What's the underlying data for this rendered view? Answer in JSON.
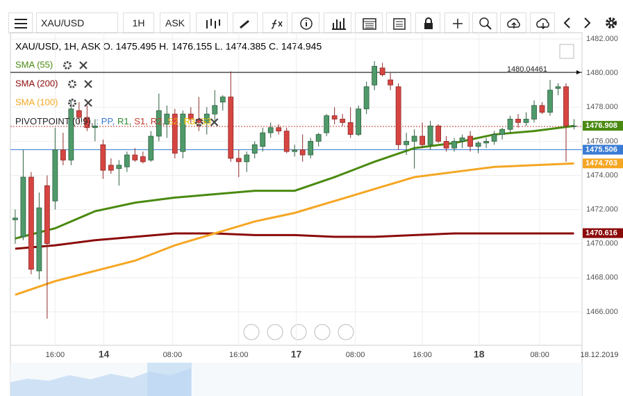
{
  "toolbar": {
    "symbol": "XAU/USD",
    "interval": "1H",
    "price_type": "ASK"
  },
  "chart_data": {
    "type": "candlestick",
    "title": "XAU/USD, 1H, ASK",
    "ohlc_text": "O. 1475.495 H. 1476.155 L. 1474.385 C. 1474.945",
    "up_color": "#4f9a6a",
    "down_color": "#d64541",
    "open": [
      1471.4,
      1470.4,
      1473.9,
      1468.4,
      1473.4,
      1472.5,
      1475.5,
      1474.9,
      1477.8,
      1477.4,
      1476.8,
      1475.8,
      1474.6,
      1474.4,
      1474.5,
      1475.2,
      1475.1,
      1474.9,
      1476.3,
      1477.0,
      1477.6,
      1475.4,
      1477.6,
      1477.3,
      1477.1,
      1477.6,
      1478.3,
      1478.6,
      1475.0,
      1474.8,
      1475.3,
      1475.7,
      1476.5,
      1476.8,
      1476.6,
      1475.4,
      1475.5,
      1475.2,
      1476.0,
      1476.5,
      1477.5,
      1477.3,
      1477.1,
      1476.4,
      1477.9,
      1479.3,
      1480.3,
      1479.6,
      1479.2,
      1475.8,
      1476.0,
      1476.3,
      1475.8,
      1476.9,
      1476.0,
      1475.6,
      1476.0,
      1476.3,
      1475.7,
      1475.9,
      1476.0,
      1476.4,
      1476.7,
      1477.3,
      1477.1,
      1477.3,
      1478.1,
      1477.7,
      1479.1,
      1479.2,
      1476.9
    ],
    "high": [
      1472.0,
      1475.5,
      1474.2,
      1473.0,
      1474.0,
      1476.8,
      1476.5,
      1478.4,
      1478.3,
      1478.1,
      1477.3,
      1476.1,
      1475.0,
      1474.9,
      1475.4,
      1475.6,
      1475.4,
      1476.6,
      1478.8,
      1478.1,
      1477.9,
      1477.8,
      1478.0,
      1478.6,
      1478.0,
      1479.0,
      1478.7,
      1480.1,
      1475.5,
      1475.4,
      1476.0,
      1476.8,
      1477.1,
      1477.0,
      1476.8,
      1475.8,
      1476.4,
      1476.2,
      1476.5,
      1477.6,
      1478.0,
      1477.6,
      1478.0,
      1478.1,
      1479.5,
      1480.7,
      1480.6,
      1480.0,
      1479.4,
      1476.5,
      1476.7,
      1477.1,
      1477.2,
      1477.0,
      1476.3,
      1476.2,
      1476.4,
      1476.6,
      1476.0,
      1476.2,
      1476.6,
      1476.8,
      1477.5,
      1477.6,
      1477.7,
      1478.4,
      1478.3,
      1479.6,
      1479.4,
      1479.4,
      1477.3
    ],
    "low": [
      1470.0,
      1470.2,
      1468.2,
      1467.9,
      1465.6,
      1472.0,
      1474.6,
      1474.6,
      1477.0,
      1476.6,
      1476.0,
      1473.8,
      1474.1,
      1473.4,
      1474.2,
      1474.8,
      1474.7,
      1474.8,
      1476.0,
      1476.2,
      1475.0,
      1475.0,
      1477.0,
      1476.6,
      1476.4,
      1477.2,
      1477.8,
      1474.8,
      1473.9,
      1474.2,
      1475.0,
      1475.4,
      1476.2,
      1476.4,
      1475.3,
      1475.1,
      1474.8,
      1475.0,
      1475.7,
      1476.3,
      1477.0,
      1476.9,
      1476.2,
      1476.3,
      1477.6,
      1479.0,
      1479.8,
      1479.0,
      1475.5,
      1475.2,
      1474.4,
      1475.6,
      1475.5,
      1475.9,
      1475.4,
      1475.4,
      1475.6,
      1475.4,
      1475.3,
      1475.6,
      1475.8,
      1476.1,
      1476.5,
      1476.8,
      1476.9,
      1477.1,
      1477.6,
      1477.5,
      1478.7,
      1474.8,
      1476.7
    ],
    "close": [
      1471.5,
      1473.9,
      1468.5,
      1472.1,
      1470.0,
      1475.5,
      1474.9,
      1477.9,
      1477.4,
      1476.8,
      1476.9,
      1474.3,
      1474.3,
      1474.6,
      1475.2,
      1474.9,
      1474.8,
      1476.3,
      1477.8,
      1477.6,
      1475.3,
      1477.6,
      1477.3,
      1477.1,
      1477.6,
      1478.1,
      1478.6,
      1475.0,
      1474.8,
      1475.2,
      1475.8,
      1476.5,
      1476.8,
      1476.6,
      1475.4,
      1475.5,
      1475.2,
      1476.0,
      1476.4,
      1477.5,
      1477.3,
      1477.1,
      1476.4,
      1477.9,
      1479.2,
      1480.4,
      1479.9,
      1479.3,
      1475.8,
      1476.0,
      1476.3,
      1475.8,
      1476.9,
      1476.0,
      1475.6,
      1476.0,
      1476.2,
      1475.7,
      1475.9,
      1476.0,
      1476.4,
      1476.7,
      1477.3,
      1477.1,
      1477.3,
      1478.1,
      1477.7,
      1479.0,
      1479.2,
      1476.9,
      1476.9
    ],
    "lines": [
      {
        "name": "SMA (55)",
        "color": "#4a8a10",
        "x": [
          0,
          5,
          10,
          15,
          20,
          25,
          30,
          35,
          40,
          45,
          50,
          55,
          60,
          65,
          70
        ],
        "values": [
          1470.3,
          1470.9,
          1471.9,
          1472.4,
          1472.7,
          1472.9,
          1473.1,
          1473.1,
          1473.9,
          1474.8,
          1475.6,
          1475.9,
          1476.4,
          1476.6,
          1476.9
        ]
      },
      {
        "name": "SMA (200)",
        "color": "#8b0a0a",
        "x": [
          0,
          5,
          10,
          15,
          20,
          25,
          30,
          35,
          40,
          45,
          50,
          55,
          60,
          65,
          70
        ],
        "values": [
          1469.7,
          1469.9,
          1470.2,
          1470.4,
          1470.6,
          1470.6,
          1470.5,
          1470.5,
          1470.4,
          1470.4,
          1470.5,
          1470.6,
          1470.6,
          1470.6,
          1470.6
        ]
      },
      {
        "name": "SMA (100)",
        "color": "#f5a623",
        "x": [
          0,
          5,
          10,
          15,
          20,
          25,
          30,
          35,
          40,
          45,
          50,
          55,
          60,
          65,
          70
        ],
        "values": [
          1467.0,
          1467.8,
          1468.4,
          1469.0,
          1469.9,
          1470.6,
          1471.3,
          1471.8,
          1472.5,
          1473.2,
          1473.9,
          1474.2,
          1474.5,
          1474.6,
          1474.7
        ]
      }
    ],
    "pivot_legend": {
      "label": "PIVOTPOINT (0!9),",
      "items": [
        {
          "text": ": PP,",
          "color": "#3a7bd5"
        },
        {
          "text": "R1,",
          "color": "#2e8b2e"
        },
        {
          "text": "S1,",
          "color": "#c0392b"
        },
        {
          "text": "R2,",
          "color": "#c0392b"
        },
        {
          "text": "S2,",
          "color": "#f5a623"
        },
        {
          "text": "R3,",
          "color": "#f5c400"
        },
        {
          "text": "S3",
          "color": "#f5c400"
        }
      ]
    },
    "levels": [
      {
        "value": 1480.04461,
        "color": "#000000",
        "label": "1480.04461"
      },
      {
        "value": 1475.506,
        "color": "#3a7bd5"
      }
    ],
    "current_line": {
      "value": 1476.87,
      "color": "#c0392b"
    },
    "price_tags": [
      {
        "value": 1476.908,
        "color": "#4a8a10"
      },
      {
        "value": 1475.506,
        "color": "#3a7bd5"
      },
      {
        "value": 1474.703,
        "color": "#f5a623"
      },
      {
        "value": 1470.616,
        "color": "#8b0a0a"
      }
    ],
    "ylim": [
      1464.04,
      1482.37
    ],
    "yticks": [
      {
        "value": 1466,
        "label": "1466.000"
      },
      {
        "value": 1468,
        "label": "1468.000"
      },
      {
        "value": 1470,
        "label": "1470.000"
      },
      {
        "value": 1472,
        "label": "1472.000"
      },
      {
        "value": 1474,
        "label": "1474.000"
      },
      {
        "value": 1476,
        "label": "1476.000"
      },
      {
        "value": 1478,
        "label": "1478.000"
      },
      {
        "value": 1480,
        "label": "1480.000"
      },
      {
        "value": 1482,
        "label": "1482.000"
      }
    ],
    "xlim": [
      -0.6,
      71
    ],
    "xticks": [
      {
        "value": 5,
        "label": "16:00"
      },
      {
        "value": 11.1,
        "label": "14"
      },
      {
        "value": 19.7,
        "label": "08:00"
      },
      {
        "value": 28,
        "label": "16:00"
      },
      {
        "value": 35.2,
        "label": "17"
      },
      {
        "value": 42.6,
        "label": "08:00"
      },
      {
        "value": 51,
        "label": "16:00"
      },
      {
        "value": 58.1,
        "label": "18"
      },
      {
        "value": 65.7,
        "label": "08:00"
      }
    ],
    "last_date": "18.12.2019",
    "grid": true
  }
}
